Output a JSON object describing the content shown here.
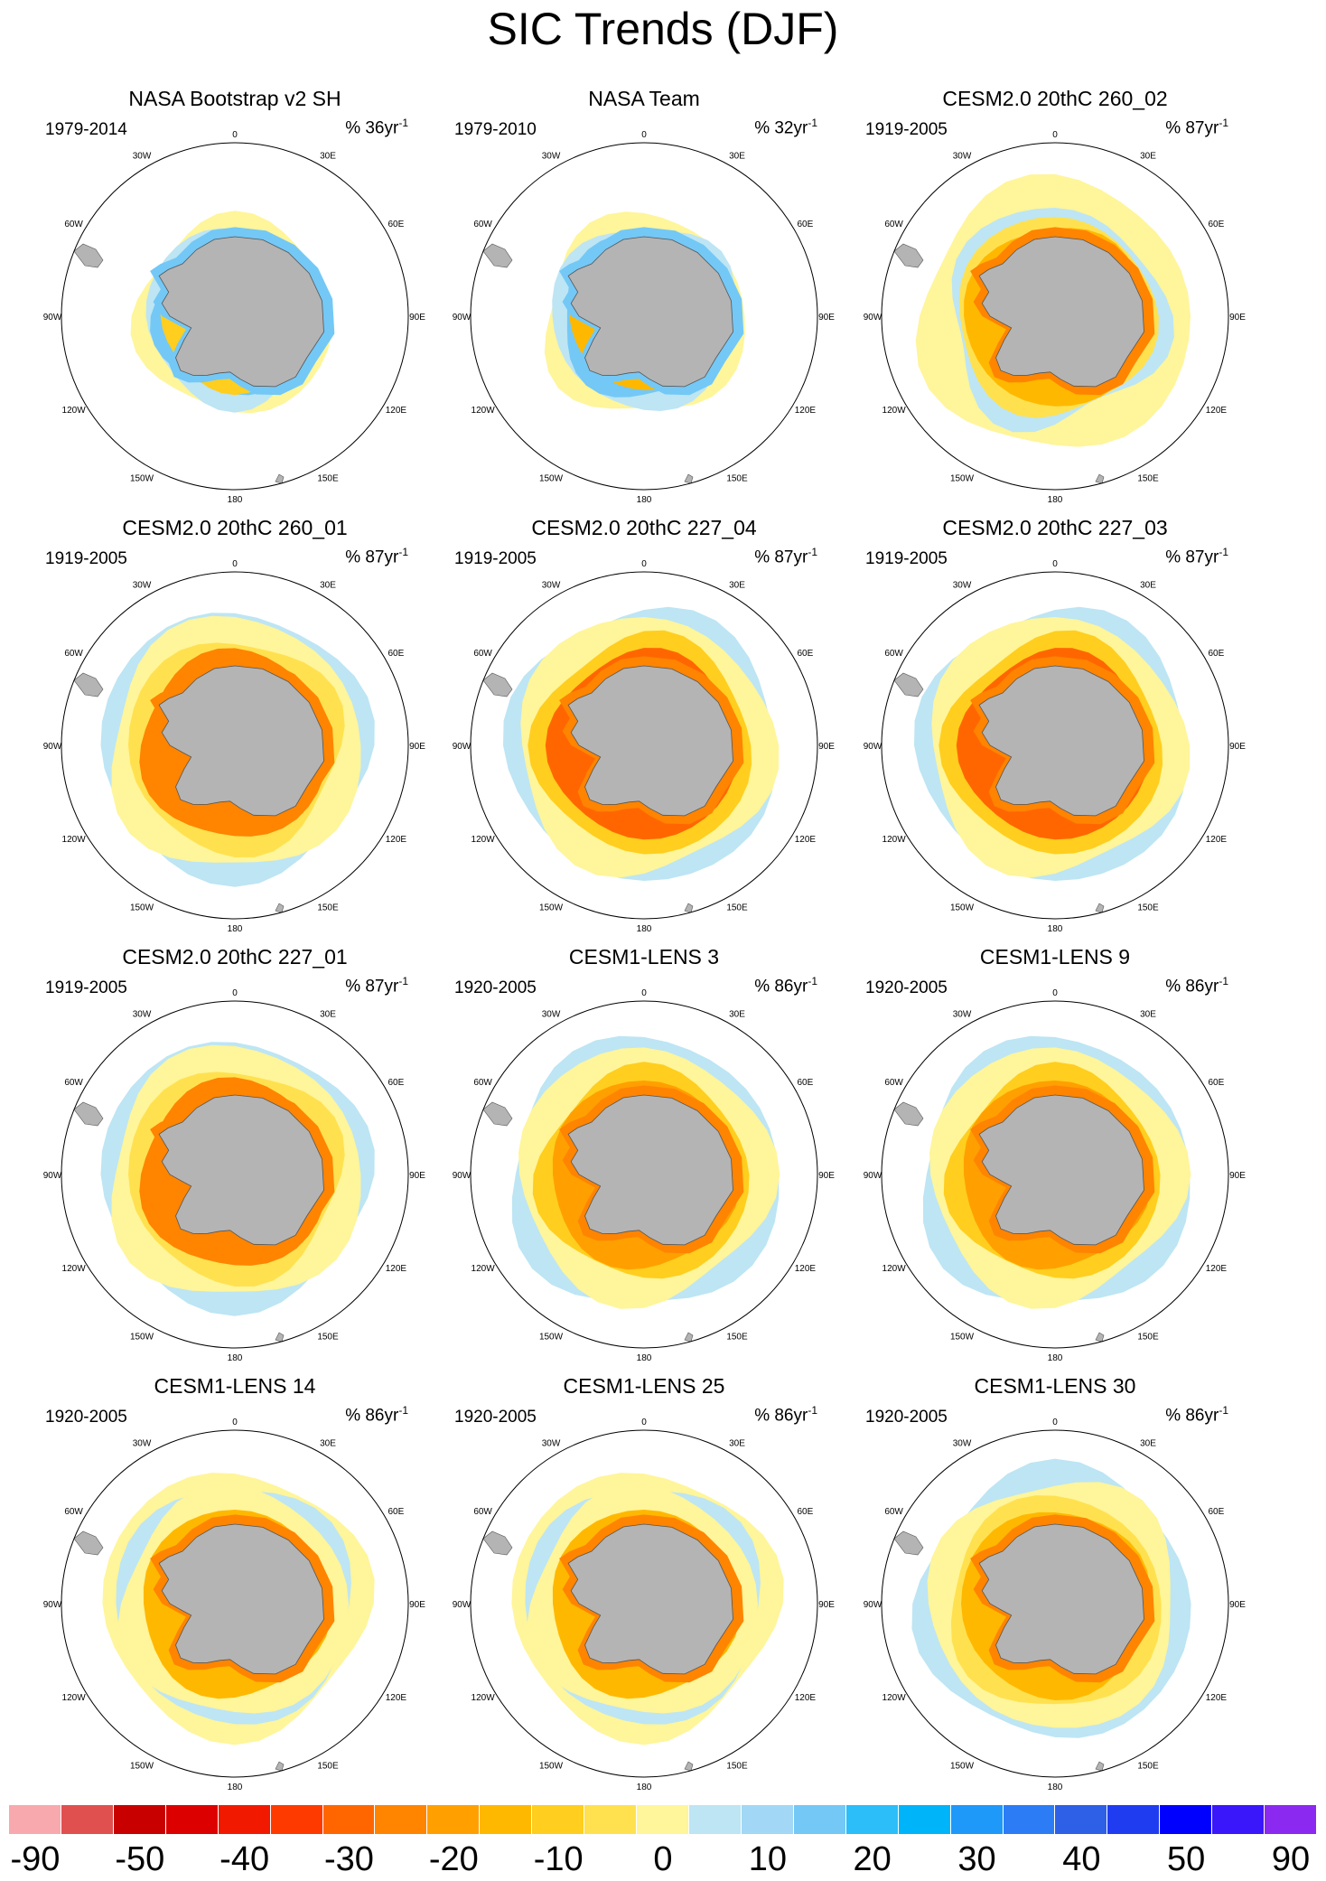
{
  "title": "SIC Trends (DJF)",
  "panels": [
    {
      "title": "NASA Bootstrap v2 SH",
      "period": "1979-2014",
      "units": "% 36yr",
      "units_exp": "-1",
      "pattern": "obs_bootstrap"
    },
    {
      "title": "NASA Team",
      "period": "1979-2010",
      "units": "% 32yr",
      "units_exp": "-1",
      "pattern": "obs_team"
    },
    {
      "title": "CESM2.0 20thC 260_02",
      "period": "1919-2005",
      "units": "% 87yr",
      "units_exp": "-1",
      "pattern": "model_a"
    },
    {
      "title": "CESM2.0 20thC 260_01",
      "period": "1919-2005",
      "units": "% 87yr",
      "units_exp": "-1",
      "pattern": "model_b"
    },
    {
      "title": "CESM2.0 20thC 227_04",
      "period": "1919-2005",
      "units": "% 87yr",
      "units_exp": "-1",
      "pattern": "model_c"
    },
    {
      "title": "CESM2.0 20thC 227_03",
      "period": "1919-2005",
      "units": "% 87yr",
      "units_exp": "-1",
      "pattern": "model_c"
    },
    {
      "title": "CESM2.0 20thC 227_01",
      "period": "1919-2005",
      "units": "% 87yr",
      "units_exp": "-1",
      "pattern": "model_b"
    },
    {
      "title": "CESM1-LENS 3",
      "period": "1920-2005",
      "units": "% 86yr",
      "units_exp": "-1",
      "pattern": "model_d"
    },
    {
      "title": "CESM1-LENS 9",
      "period": "1920-2005",
      "units": "% 86yr",
      "units_exp": "-1",
      "pattern": "model_d"
    },
    {
      "title": "CESM1-LENS 14",
      "period": "1920-2005",
      "units": "% 86yr",
      "units_exp": "-1",
      "pattern": "model_e"
    },
    {
      "title": "CESM1-LENS 25",
      "period": "1920-2005",
      "units": "% 86yr",
      "units_exp": "-1",
      "pattern": "model_e"
    },
    {
      "title": "CESM1-LENS 30",
      "period": "1920-2005",
      "units": "% 86yr",
      "units_exp": "-1",
      "pattern": "model_f"
    }
  ],
  "longitude_labels": {
    "deg0": "0",
    "deg30e": "30E",
    "deg60e": "60E",
    "deg90e": "90E",
    "deg120e": "120E",
    "deg150e": "150E",
    "deg180": "180",
    "deg150w": "150W",
    "deg120w": "120W",
    "deg90w": "90W",
    "deg60w": "60W",
    "deg30w": "30W"
  },
  "land_color": "#b4b4b4",
  "colorbar": {
    "colors": [
      "#f8a9ad",
      "#e0504f",
      "#c80000",
      "#dc0000",
      "#f11a00",
      "#ff3a00",
      "#ff6600",
      "#ff8400",
      "#ffa000",
      "#ffb800",
      "#ffce1e",
      "#ffe150",
      "#fff59a",
      "#bde5f4",
      "#a2d8f5",
      "#73c8f6",
      "#2bbef9",
      "#00b4f9",
      "#1e98f9",
      "#2b7cf5",
      "#2d60e6",
      "#1f3cf0",
      "#0000ff",
      "#3a16fa",
      "#8b29f0"
    ],
    "labels": [
      "-90",
      "-50",
      "-40",
      "-30",
      "-20",
      "-10",
      "0",
      "10",
      "20",
      "30",
      "40",
      "50",
      "90"
    ]
  }
}
